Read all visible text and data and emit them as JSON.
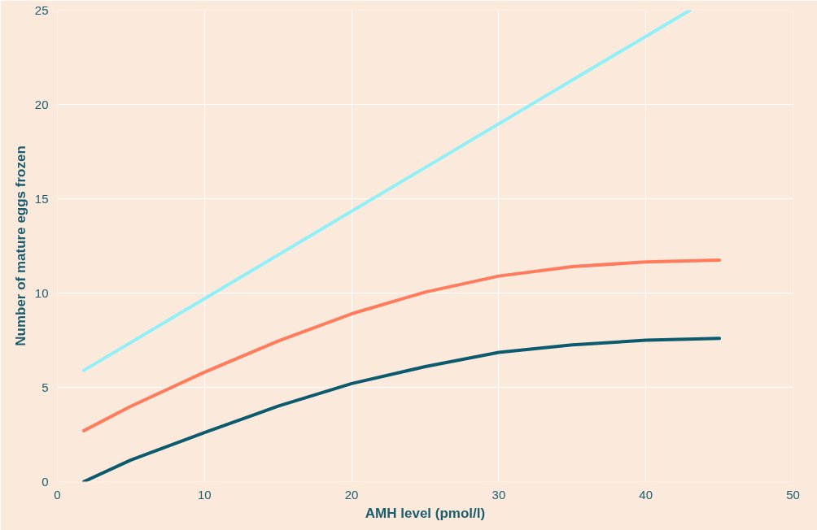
{
  "chart_data": {
    "type": "line",
    "xlabel": "AMH level (pmol/l)",
    "ylabel": "Number of mature eggs frozen",
    "xlim": [
      0,
      50
    ],
    "ylim": [
      0,
      25
    ],
    "xticks": [
      0,
      10,
      20,
      30,
      40,
      50
    ],
    "yticks": [
      0,
      5,
      10,
      15,
      20,
      25
    ],
    "grid": true,
    "marker": "none",
    "line_style": "solid",
    "series": [
      {
        "color": "#8ff0f8",
        "x": [
          1.8,
          43
        ],
        "values": [
          5.9,
          25
        ]
      },
      {
        "color": "#ff7b5c",
        "x": [
          1.8,
          5,
          10,
          15,
          20,
          25,
          30,
          35,
          40,
          45
        ],
        "values": [
          2.7,
          4.0,
          5.8,
          7.45,
          8.9,
          10.05,
          10.9,
          11.4,
          11.65,
          11.75
        ]
      },
      {
        "color": "#0b5a6e",
        "x": [
          1.8,
          5,
          10,
          15,
          20,
          25,
          30,
          35,
          40,
          45
        ],
        "values": [
          0,
          1.15,
          2.6,
          4.0,
          5.2,
          6.1,
          6.85,
          7.25,
          7.5,
          7.6
        ]
      }
    ]
  }
}
